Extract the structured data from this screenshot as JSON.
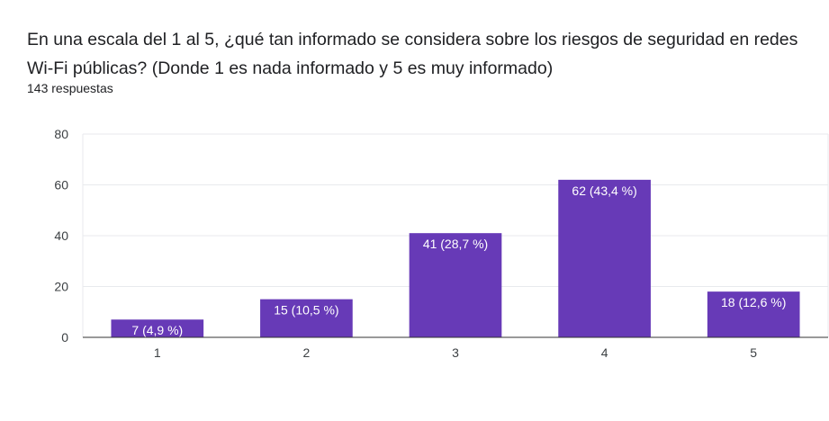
{
  "question": {
    "title": "En una escala del 1 al 5, ¿qué tan informado se considera sobre los riesgos de seguridad en redes Wi-Fi públicas? (Donde 1 es nada informado y 5 es muy informado)",
    "responses": "143 respuestas"
  },
  "colors": {
    "bar": "#673ab7",
    "grid": "#e8eaed",
    "axis": "#333333"
  },
  "chart_data": {
    "type": "bar",
    "categories": [
      "1",
      "2",
      "3",
      "4",
      "5"
    ],
    "values": [
      7,
      15,
      41,
      62,
      18
    ],
    "data_labels": [
      "7 (4,9 %)",
      "15 (10,5 %)",
      "41 (28,7 %)",
      "62 (43,4 %)",
      "18 (12,6 %)"
    ],
    "ylim": [
      0,
      80
    ],
    "yticks": [
      0,
      20,
      40,
      60,
      80
    ],
    "grid": true,
    "legend": "none"
  }
}
